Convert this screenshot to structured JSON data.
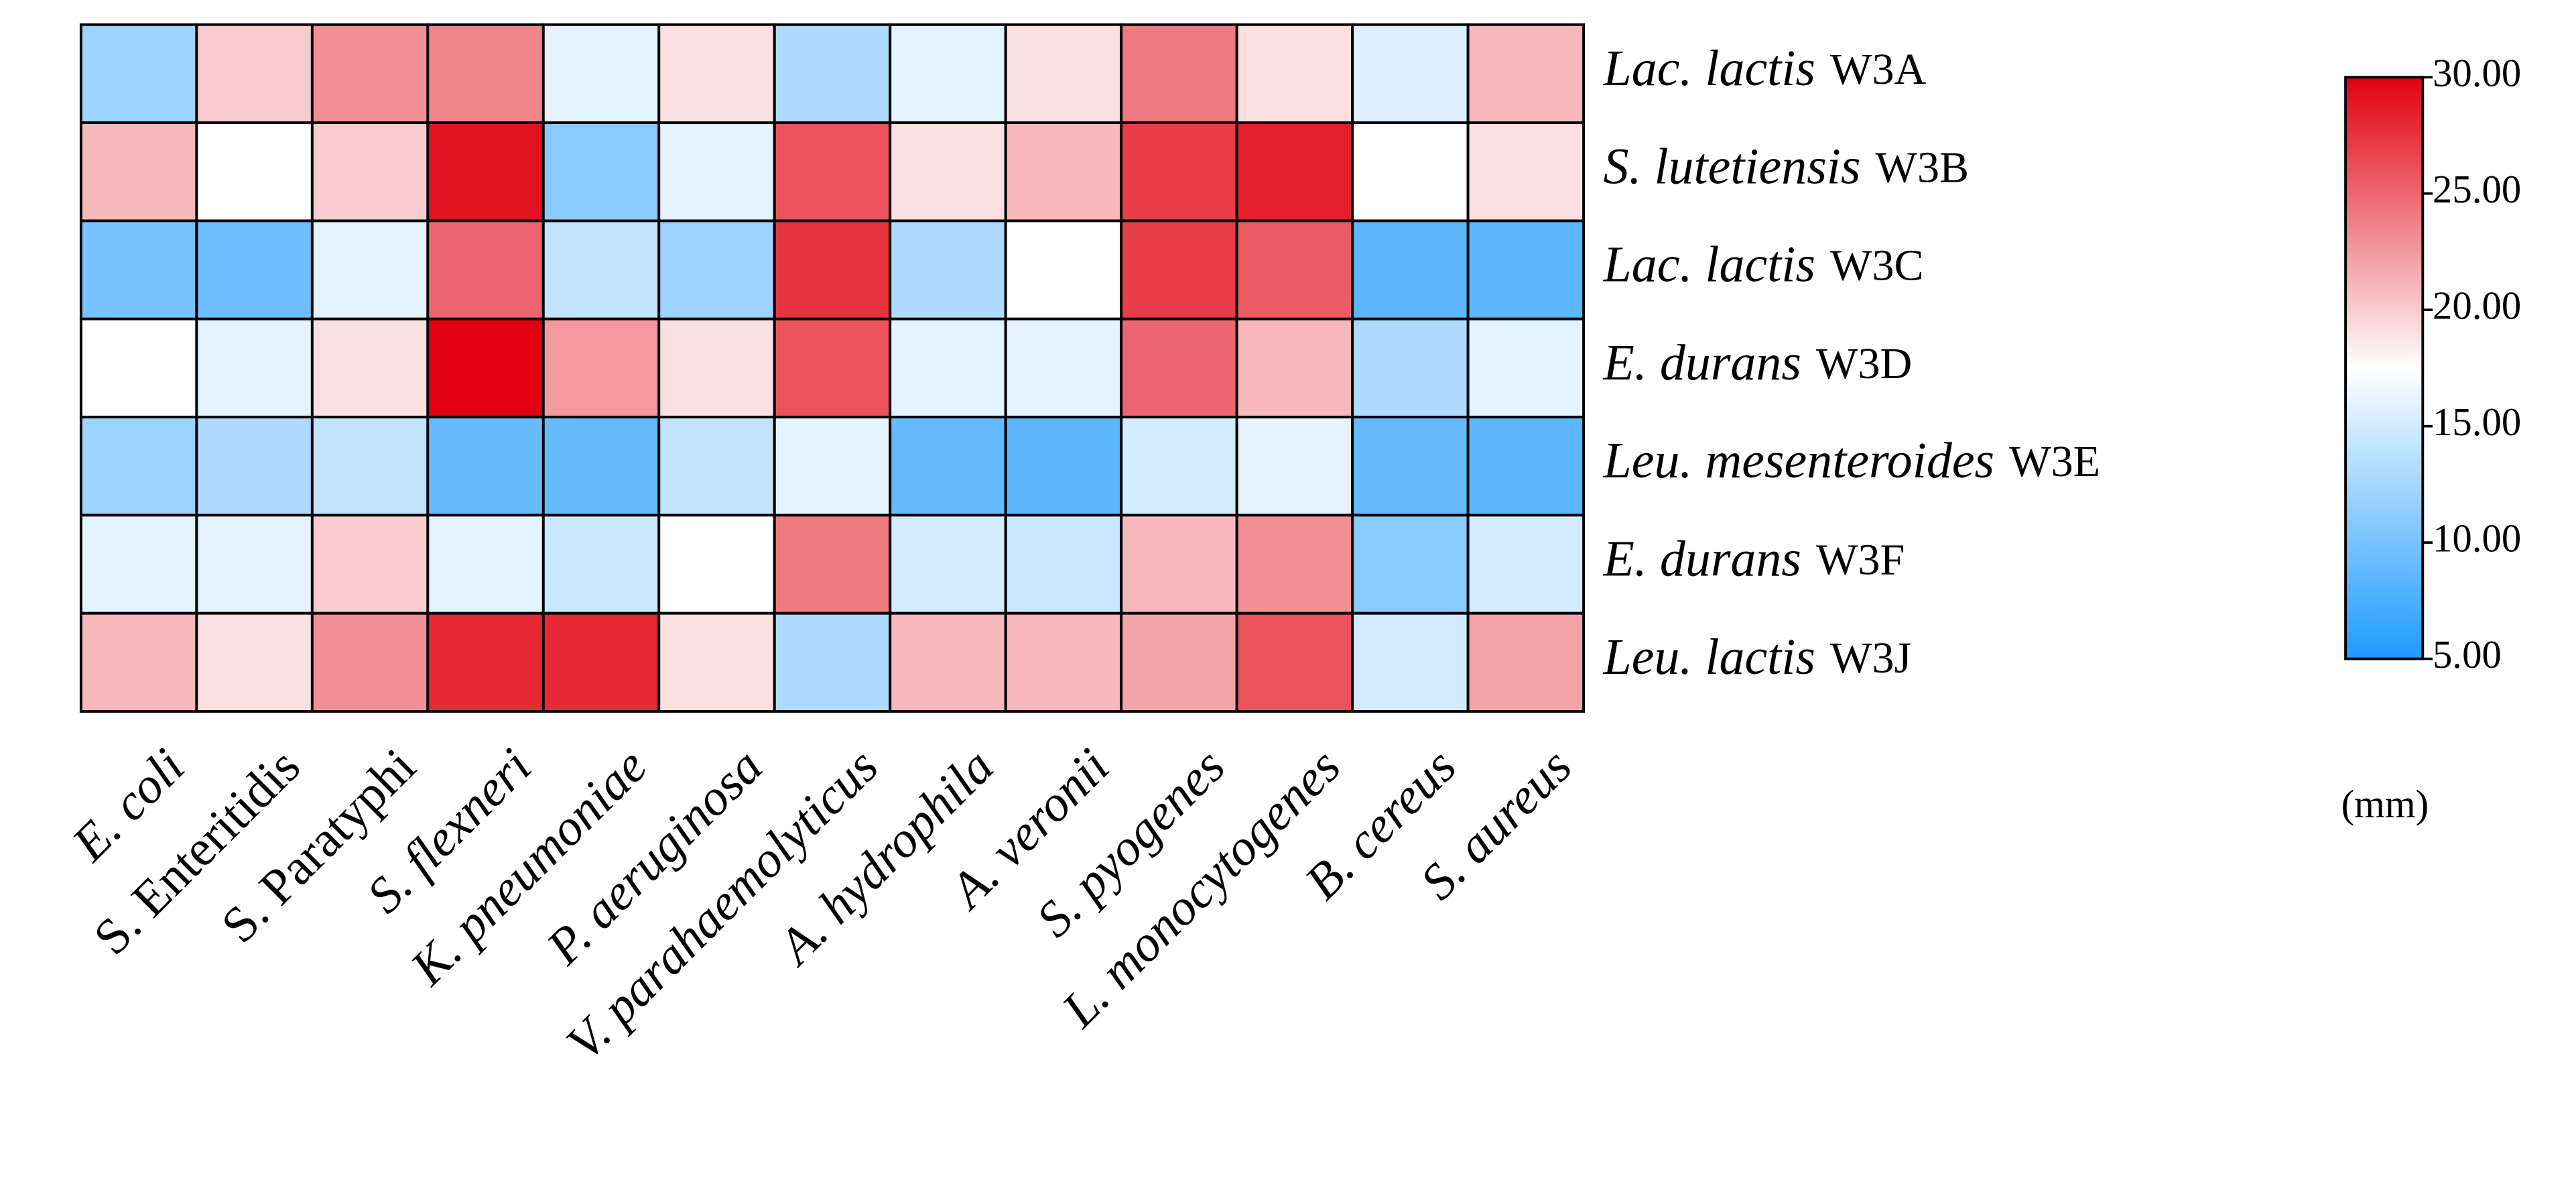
{
  "chart_data": {
    "type": "heatmap",
    "x_categories": [
      "E. coli",
      "S. Enteritidis",
      "S. Paratyphi",
      "S. flexneri",
      "K. pneumoniae",
      "P. aeruginosa",
      "V. parahaemolyticus",
      "A. hydrophila",
      "A. veronii",
      "S. pyogenes",
      "L. monocytogenes",
      "B. cereus",
      "S. aureus"
    ],
    "x_label_italic": [
      true,
      false,
      false,
      true,
      true,
      true,
      true,
      true,
      true,
      true,
      true,
      true,
      true
    ],
    "y_categories": [
      {
        "species": "Lac. lactis",
        "strain": "W3A"
      },
      {
        "species": "S. lutetiensis",
        "strain": "W3B"
      },
      {
        "species": "Lac. lactis",
        "strain": "W3C"
      },
      {
        "species": "E. durans",
        "strain": "W3D"
      },
      {
        "species": "Leu. mesenteroides",
        "strain": "W3E"
      },
      {
        "species": "E. durans",
        "strain": "W3F"
      },
      {
        "species": "Leu. lactis",
        "strain": "W3J"
      }
    ],
    "values": [
      [
        12,
        20,
        23,
        23.5,
        16,
        19,
        13,
        16,
        19,
        24,
        19,
        15.5,
        21
      ],
      [
        21,
        17.5,
        20,
        29,
        11,
        16,
        26,
        19,
        21,
        27,
        28.5,
        17.5,
        19
      ],
      [
        10,
        9.5,
        16,
        25,
        14,
        12,
        27.5,
        13,
        17.5,
        27,
        25.5,
        8.5,
        8.5
      ],
      [
        17.5,
        16,
        19,
        30,
        22.5,
        19,
        26,
        16,
        16,
        25,
        21,
        13,
        16
      ],
      [
        12,
        13,
        14,
        9,
        9,
        14,
        16,
        9,
        8.5,
        15,
        16,
        9,
        8.5
      ],
      [
        16,
        16,
        20,
        16,
        14.5,
        17.5,
        24,
        15,
        14.5,
        21,
        23,
        11,
        15
      ],
      [
        21,
        19,
        23,
        28,
        28,
        19,
        13,
        21,
        21,
        22,
        26,
        15,
        22
      ]
    ],
    "colormap": [
      "#1e9bff",
      "#ffffff",
      "#e1000f"
    ],
    "clim": [
      5,
      30
    ],
    "cticks": [
      {
        "value": 5,
        "label": "5.00"
      },
      {
        "value": 10,
        "label": "10.00"
      },
      {
        "value": 15,
        "label": "15.00"
      },
      {
        "value": 20,
        "label": "20.00"
      },
      {
        "value": 25,
        "label": "25.00"
      },
      {
        "value": 30,
        "label": "30.00"
      }
    ],
    "colorbar_label": "(mm)"
  }
}
